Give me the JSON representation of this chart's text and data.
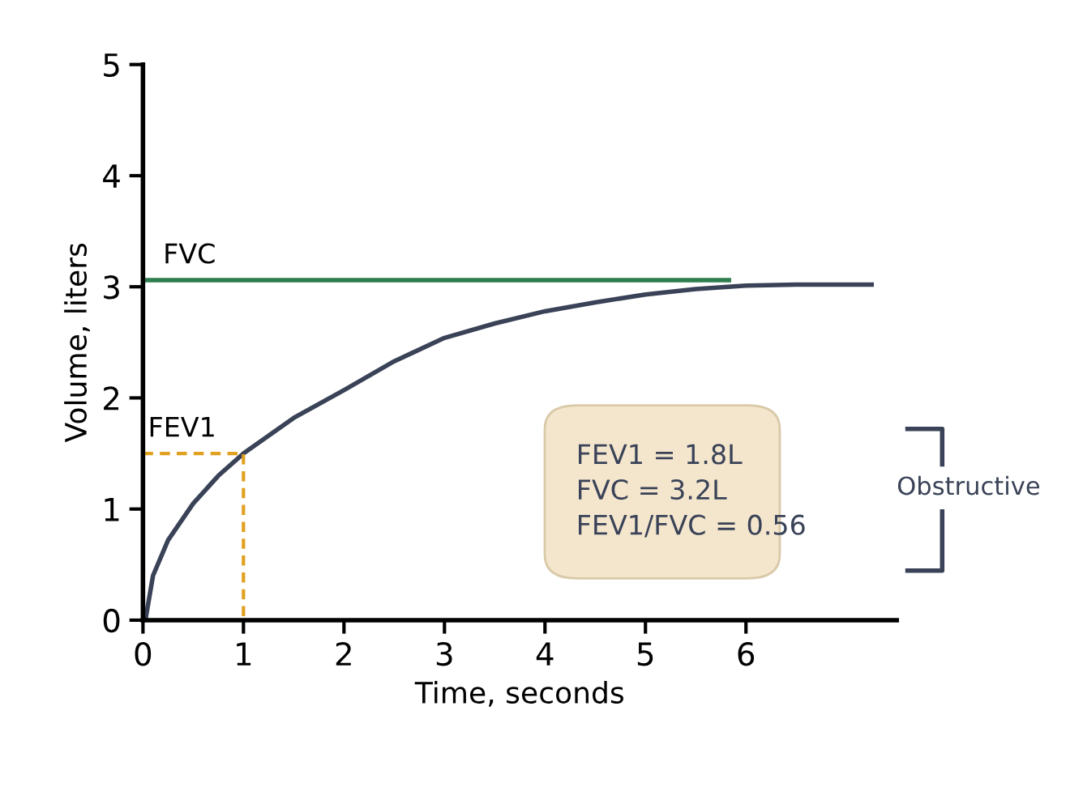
{
  "chart_data": {
    "type": "line",
    "xlabel": "Time, seconds",
    "ylabel": "Volume, liters",
    "xlim": [
      0,
      7.5
    ],
    "ylim": [
      0,
      5
    ],
    "xticks": [
      0,
      1,
      2,
      3,
      4,
      5,
      6
    ],
    "yticks": [
      0,
      1,
      2,
      3,
      4,
      5
    ],
    "series": [
      {
        "color": "#3a4257",
        "x": [
          0.03,
          0.1,
          0.25,
          0.5,
          0.75,
          1,
          1.5,
          2,
          2.5,
          3,
          3.5,
          4,
          4.5,
          5,
          5.5,
          6,
          6.5,
          7.25
        ],
        "values": [
          0.03,
          0.4,
          0.72,
          1.05,
          1.3,
          1.5,
          1.82,
          2.07,
          2.33,
          2.54,
          2.67,
          2.78,
          2.86,
          2.93,
          2.98,
          3.01,
          3.02,
          3.02
        ]
      },
      {
        "color": "#2e7d4f",
        "x": [
          0,
          5.83
        ],
        "values": [
          3.06,
          3.06
        ]
      },
      {
        "color": "#e0a020",
        "x": [
          0,
          1,
          1
        ],
        "values": [
          1.5,
          1.5,
          0
        ],
        "line_style": "dashed"
      }
    ],
    "annotations": [
      {
        "text": "FVC",
        "x": 0.2,
        "y": 3.06
      },
      {
        "text": "FEV1",
        "x": 0.05,
        "y": 1.5
      },
      "FEV1 = 1.8L\nFVC = 3.2L\nFEV1/FVC = 0.56",
      "Obstructive"
    ]
  }
}
